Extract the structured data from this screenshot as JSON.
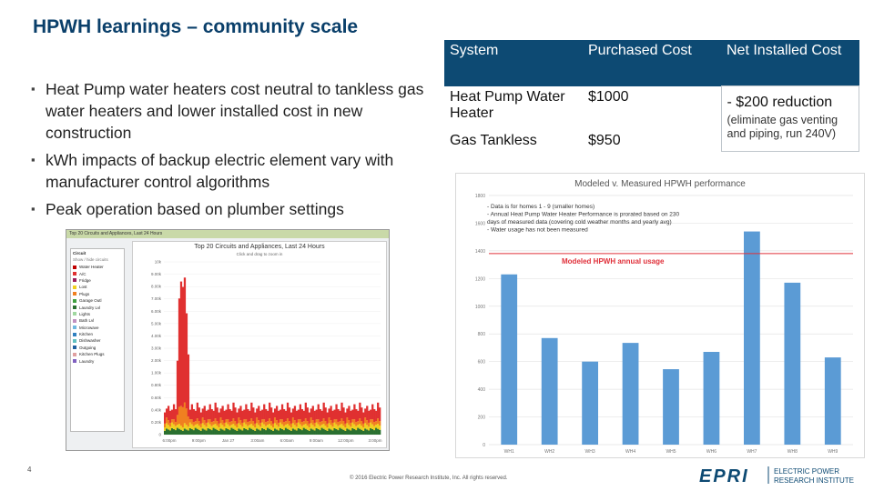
{
  "title": "HPWH learnings – community scale",
  "bullets": [
    "Heat Pump water heaters cost neutral to tankless gas water heaters and lower installed cost in new construction",
    "kWh impacts of backup electric element vary with manufacturer control algorithms",
    "Peak operation based on plumber settings"
  ],
  "cost_table": {
    "headers": [
      "System",
      "Purchased Cost",
      "Net Installed Cost"
    ],
    "rows": [
      {
        "system": "Heat Pump Water Heater",
        "cost": "$1000"
      },
      {
        "system": "Gas Tankless",
        "cost": "$950"
      }
    ],
    "net": {
      "main": "- $200 reduction",
      "sub": "(eliminate gas venting and piping, run 240V)"
    }
  },
  "circuits_screenshot": {
    "toolbar": "Top 20 Circuits and Appliances, Last 24 Hours",
    "title": "Top 20 Circuits and Appliances, Last 24 Hours",
    "subtitle": "Click and drag to zoom in",
    "legend_header": "Circuit",
    "legend_subheader": "Show / hide circuits",
    "legend": [
      {
        "name": "Water Heater",
        "color": "#c00000"
      },
      {
        "name": "A/C",
        "color": "#e03030"
      },
      {
        "name": "Fridge",
        "color": "#9b1d5a"
      },
      {
        "name": "Lost",
        "color": "#f0d020"
      },
      {
        "name": "Plugs",
        "color": "#f08020"
      },
      {
        "name": "Garage Outl",
        "color": "#40a040"
      },
      {
        "name": "Laundry Lvl",
        "color": "#2a7030"
      },
      {
        "name": "Lights",
        "color": "#a0d8a0"
      },
      {
        "name": "Bath Lvl",
        "color": "#c090c0"
      },
      {
        "name": "Microwave",
        "color": "#70b8e0"
      },
      {
        "name": "Kitchen",
        "color": "#3080c0"
      },
      {
        "name": "Dishwasher",
        "color": "#60c0c0"
      },
      {
        "name": "Outgoing",
        "color": "#2060a0"
      },
      {
        "name": "Kitchen Plugs",
        "color": "#e0a0a0"
      },
      {
        "name": "Laundry",
        "color": "#8060c0"
      }
    ],
    "y_ticks": [
      "10k",
      "9.00k",
      "8.00k",
      "7.00k",
      "6.00k",
      "5.00k",
      "4.00k",
      "3.00k",
      "2.00k",
      "1.00k",
      "0.80k",
      "0.60k",
      "0.40k",
      "0.20k",
      "0"
    ],
    "x_ticks": [
      "6:00pm",
      "9:00pm",
      "Jan 27",
      "3:00am",
      "6:00am",
      "9:00am",
      "12:00pm",
      "3:00pm"
    ]
  },
  "chart_data": {
    "type": "bar",
    "title": "Modeled v. Measured HPWH performance",
    "categories": [
      "WH1",
      "WH2",
      "WH3",
      "WH4",
      "WH5",
      "WH6",
      "WH7",
      "WH8",
      "WH9"
    ],
    "values": [
      1230,
      770,
      600,
      735,
      545,
      670,
      1540,
      1170,
      630
    ],
    "ylim": [
      0,
      1800
    ],
    "y_ticks": [
      "0",
      "200",
      "400",
      "600",
      "800",
      "1000",
      "1200",
      "1400",
      "1600",
      "1800"
    ],
    "reference_line": {
      "value": 1380,
      "label": "Modeled HPWH annual usage",
      "color": "#e0303a"
    },
    "bar_color": "#5b9bd5",
    "grid": true,
    "notes": [
      "- Data is for homes 1 - 9 (smaller homes)",
      "- Annual Heat Pump Water Heater Performance is prorated based on 230",
      "  days of measured data (covering cold weather months and yearly avg)",
      "- Water usage has not been measured"
    ]
  },
  "footer": {
    "page": "4",
    "copyright": "© 2016 Electric Power Research Institute, Inc. All rights reserved.",
    "logo_text": "EPRI",
    "logo_line1": "ELECTRIC POWER",
    "logo_line2": "RESEARCH INSTITUTE"
  },
  "colors": {
    "title": "#0a3f6a",
    "table_header": "#0d4a73",
    "accent": "#0d4a73"
  }
}
